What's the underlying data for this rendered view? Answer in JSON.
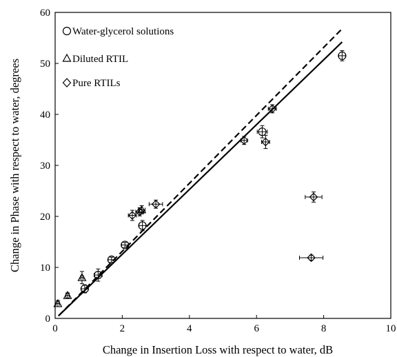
{
  "chart_data": {
    "type": "scatter",
    "title": "",
    "xlabel": "Change in Insertion Loss with respect to water, dB",
    "ylabel": "Change in Phase with respect to water, degrees",
    "xlim": [
      0,
      10
    ],
    "ylim": [
      0,
      60
    ],
    "xticks": [
      0,
      2,
      4,
      6,
      8,
      10
    ],
    "yticks": [
      0,
      10,
      20,
      30,
      40,
      50,
      60
    ],
    "grid": false,
    "legend_position": "top-left",
    "series": [
      {
        "name": "Water-glycerol solutions",
        "marker": "circle",
        "points": [
          {
            "x": 0.88,
            "y": 5.8,
            "xerr": 0.1,
            "yerr": 0.8
          },
          {
            "x": 1.28,
            "y": 8.5,
            "xerr": 0.12,
            "yerr": 1.2
          },
          {
            "x": 1.68,
            "y": 11.5,
            "xerr": 0.1,
            "yerr": 0.5
          },
          {
            "x": 2.08,
            "y": 14.4,
            "xerr": 0.1,
            "yerr": 0.5
          },
          {
            "x": 2.6,
            "y": 18.2,
            "xerr": 0.1,
            "yerr": 1.0
          },
          {
            "x": 6.17,
            "y": 36.6,
            "xerr": 0.15,
            "yerr": 1.2
          },
          {
            "x": 8.55,
            "y": 51.5,
            "xerr": 0.1,
            "yerr": 1.0
          }
        ]
      },
      {
        "name": "Diluted RTIL",
        "marker": "triangle",
        "points": [
          {
            "x": 0.08,
            "y": 2.9,
            "xerr": 0.05,
            "yerr": 0.6
          },
          {
            "x": 0.37,
            "y": 4.5,
            "xerr": 0.05,
            "yerr": 0.5
          },
          {
            "x": 0.8,
            "y": 8.0,
            "xerr": 0.05,
            "yerr": 1.2
          },
          {
            "x": 2.58,
            "y": 21.3,
            "xerr": 0.1,
            "yerr": 0.8
          }
        ]
      },
      {
        "name": "Pure RTILs",
        "marker": "diamond",
        "points": [
          {
            "x": 2.3,
            "y": 20.2,
            "xerr": 0.12,
            "yerr": 1.0
          },
          {
            "x": 2.52,
            "y": 20.9,
            "xerr": 0.12,
            "yerr": 0.8
          },
          {
            "x": 3.0,
            "y": 22.4,
            "xerr": 0.2,
            "yerr": 0.8
          },
          {
            "x": 5.63,
            "y": 34.9,
            "xerr": 0.1,
            "yerr": 0.8
          },
          {
            "x": 6.27,
            "y": 34.6,
            "xerr": 0.12,
            "yerr": 1.3
          },
          {
            "x": 6.47,
            "y": 41.1,
            "xerr": 0.12,
            "yerr": 0.8
          },
          {
            "x": 7.7,
            "y": 23.8,
            "xerr": 0.25,
            "yerr": 1.0
          },
          {
            "x": 7.63,
            "y": 11.9,
            "xerr": 0.35,
            "yerr": 0.5
          }
        ]
      }
    ],
    "fit_lines": [
      {
        "style": "solid",
        "x": [
          0.1,
          8.55
        ],
        "y": [
          0.5,
          54.2
        ]
      },
      {
        "style": "dashed",
        "x": [
          0.1,
          8.55
        ],
        "y": [
          0.5,
          56.8
        ]
      }
    ]
  }
}
